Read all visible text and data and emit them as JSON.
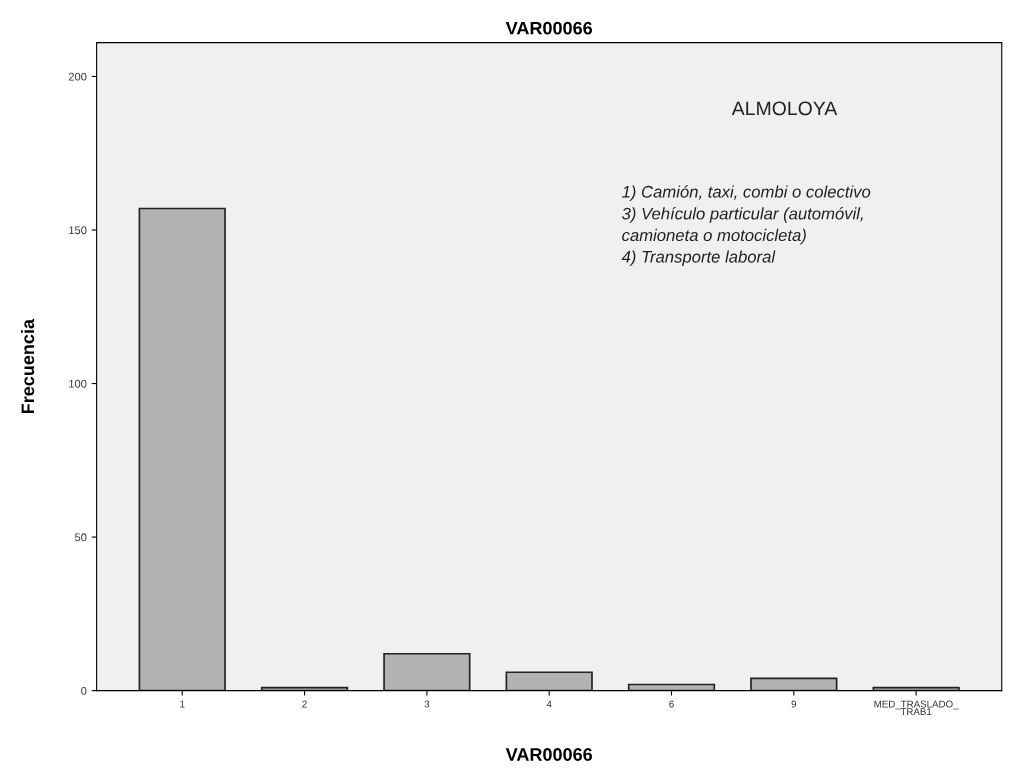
{
  "chart_data": {
    "type": "bar",
    "title": "VAR00066",
    "xlabel": "VAR00066",
    "ylabel": "Frecuencia",
    "categories": [
      "1",
      "2",
      "3",
      "4",
      "6",
      "9",
      "MED_TRASLADO_\nTRAB1"
    ],
    "values": [
      157,
      1,
      12,
      6,
      2,
      4,
      1
    ],
    "color": "#b3b3b3",
    "ylim": [
      0,
      211
    ],
    "yticks": [
      0,
      50,
      100,
      150,
      200
    ],
    "grid": false,
    "annotations": [
      "ALMOLOYA",
      "1) Camión, taxi, combi o colectivo\n3) Vehículo particular (automóvil,\ncamioneta o motocicleta)\n4) Transporte laboral"
    ]
  }
}
